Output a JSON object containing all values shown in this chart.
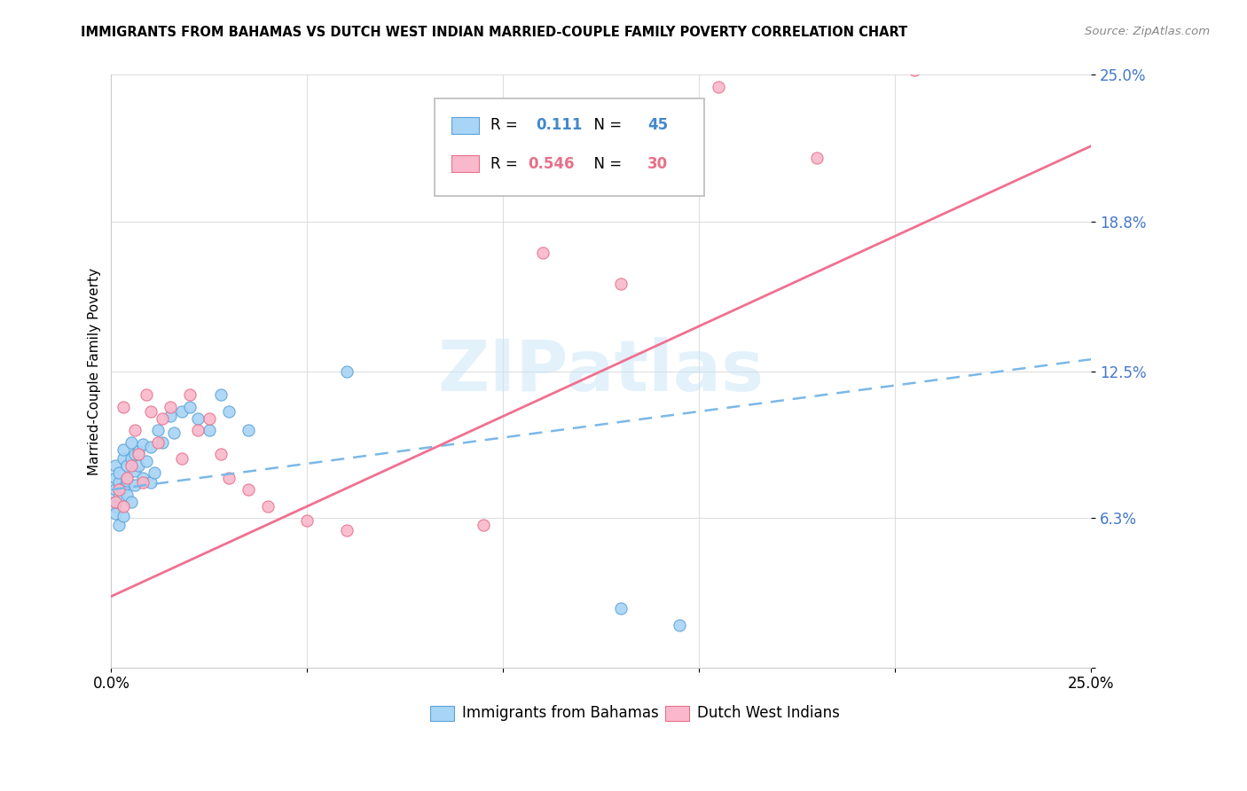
{
  "title": "IMMIGRANTS FROM BAHAMAS VS DUTCH WEST INDIAN MARRIED-COUPLE FAMILY POVERTY CORRELATION CHART",
  "source": "Source: ZipAtlas.com",
  "ylabel": "Married-Couple Family Poverty",
  "xlim": [
    0,
    0.25
  ],
  "ylim": [
    0,
    0.25
  ],
  "xtick_positions": [
    0.0,
    0.05,
    0.1,
    0.15,
    0.2,
    0.25
  ],
  "xtick_labels": [
    "0.0%",
    "",
    "",
    "",
    "",
    "25.0%"
  ],
  "ytick_positions": [
    0.0,
    0.063,
    0.125,
    0.188,
    0.25
  ],
  "ytick_labels": [
    "",
    "6.3%",
    "12.5%",
    "18.8%",
    "25.0%"
  ],
  "blue_face": "#a8d4f5",
  "blue_edge": "#5ba3d9",
  "pink_face": "#f9b8cb",
  "pink_edge": "#e8708a",
  "blue_line_color": "#7ab8e8",
  "pink_line_color": "#f07090",
  "watermark_color": "#c8e4f8",
  "grid_color": "#d8d8d8",
  "r1_value": "0.111",
  "r1_n": "45",
  "r2_value": "0.546",
  "r2_n": "30",
  "blue_line_x": [
    0.0,
    0.25
  ],
  "blue_line_y": [
    0.075,
    0.13
  ],
  "pink_line_x": [
    0.0,
    0.25
  ],
  "pink_line_y": [
    0.03,
    0.22
  ],
  "bahamas_x": [
    0.001,
    0.001,
    0.001,
    0.001,
    0.001,
    0.001,
    0.002,
    0.002,
    0.002,
    0.002,
    0.003,
    0.003,
    0.003,
    0.003,
    0.004,
    0.004,
    0.004,
    0.005,
    0.005,
    0.005,
    0.006,
    0.006,
    0.006,
    0.007,
    0.007,
    0.008,
    0.008,
    0.009,
    0.01,
    0.01,
    0.011,
    0.012,
    0.013,
    0.015,
    0.016,
    0.018,
    0.02,
    0.022,
    0.025,
    0.028,
    0.03,
    0.035,
    0.06,
    0.13,
    0.145
  ],
  "bahamas_y": [
    0.07,
    0.075,
    0.08,
    0.085,
    0.068,
    0.065,
    0.072,
    0.078,
    0.082,
    0.06,
    0.088,
    0.092,
    0.076,
    0.064,
    0.085,
    0.079,
    0.073,
    0.095,
    0.088,
    0.07,
    0.09,
    0.083,
    0.077,
    0.091,
    0.085,
    0.094,
    0.08,
    0.087,
    0.093,
    0.078,
    0.082,
    0.1,
    0.095,
    0.106,
    0.099,
    0.108,
    0.11,
    0.105,
    0.1,
    0.115,
    0.108,
    0.1,
    0.125,
    0.025,
    0.018
  ],
  "dutch_x": [
    0.001,
    0.002,
    0.003,
    0.003,
    0.004,
    0.005,
    0.006,
    0.007,
    0.008,
    0.009,
    0.01,
    0.012,
    0.013,
    0.015,
    0.018,
    0.02,
    0.022,
    0.025,
    0.028,
    0.03,
    0.035,
    0.04,
    0.05,
    0.06,
    0.095,
    0.11,
    0.13,
    0.155,
    0.18,
    0.205
  ],
  "dutch_y": [
    0.07,
    0.075,
    0.068,
    0.11,
    0.08,
    0.085,
    0.1,
    0.09,
    0.078,
    0.115,
    0.108,
    0.095,
    0.105,
    0.11,
    0.088,
    0.115,
    0.1,
    0.105,
    0.09,
    0.08,
    0.075,
    0.068,
    0.062,
    0.058,
    0.06,
    0.175,
    0.162,
    0.245,
    0.215,
    0.252
  ]
}
